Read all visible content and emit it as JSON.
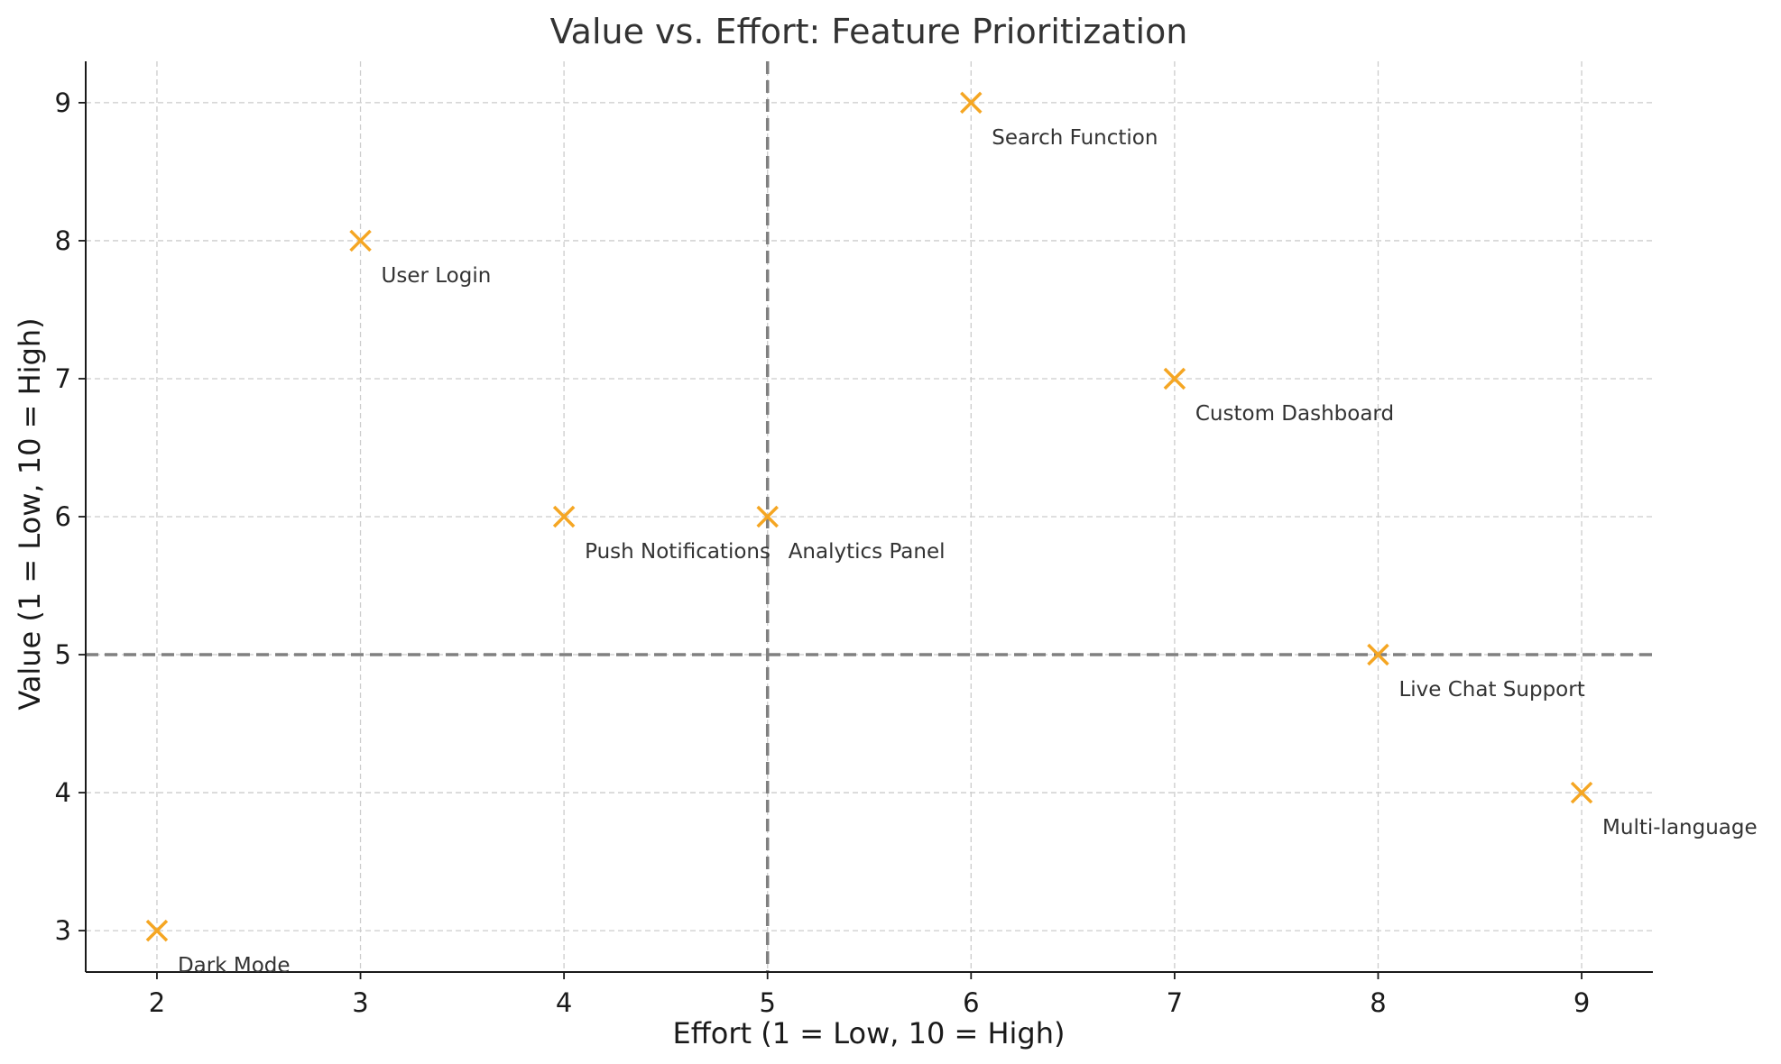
{
  "chart_data": {
    "type": "scatter",
    "title": "Value vs. Effort: Feature Prioritization",
    "xlabel": "Effort (1 = Low, 10 = High)",
    "ylabel": "Value (1 = Low, 10 = High)",
    "xlim": [
      1.65,
      9.35
    ],
    "ylim": [
      2.7,
      9.3
    ],
    "x_ticks": [
      2,
      3,
      4,
      5,
      6,
      7,
      8,
      9
    ],
    "y_ticks": [
      3,
      4,
      5,
      6,
      7,
      8,
      9
    ],
    "grid": true,
    "marker": "x",
    "marker_color": "#f5a623",
    "reference_lines": {
      "x": 5,
      "y": 5,
      "color": "#808080",
      "style": "dashed"
    },
    "points": [
      {
        "label": "User Login",
        "x": 3,
        "y": 8
      },
      {
        "label": "Dark Mode",
        "x": 2,
        "y": 3
      },
      {
        "label": "Push Notifications",
        "x": 4,
        "y": 6
      },
      {
        "label": "Analytics Panel",
        "x": 5,
        "y": 6
      },
      {
        "label": "Search Function",
        "x": 6,
        "y": 9
      },
      {
        "label": "Custom Dashboard",
        "x": 7,
        "y": 7
      },
      {
        "label": "Live Chat Support",
        "x": 8,
        "y": 5
      },
      {
        "label": "Multi-language",
        "x": 9,
        "y": 4
      }
    ]
  }
}
